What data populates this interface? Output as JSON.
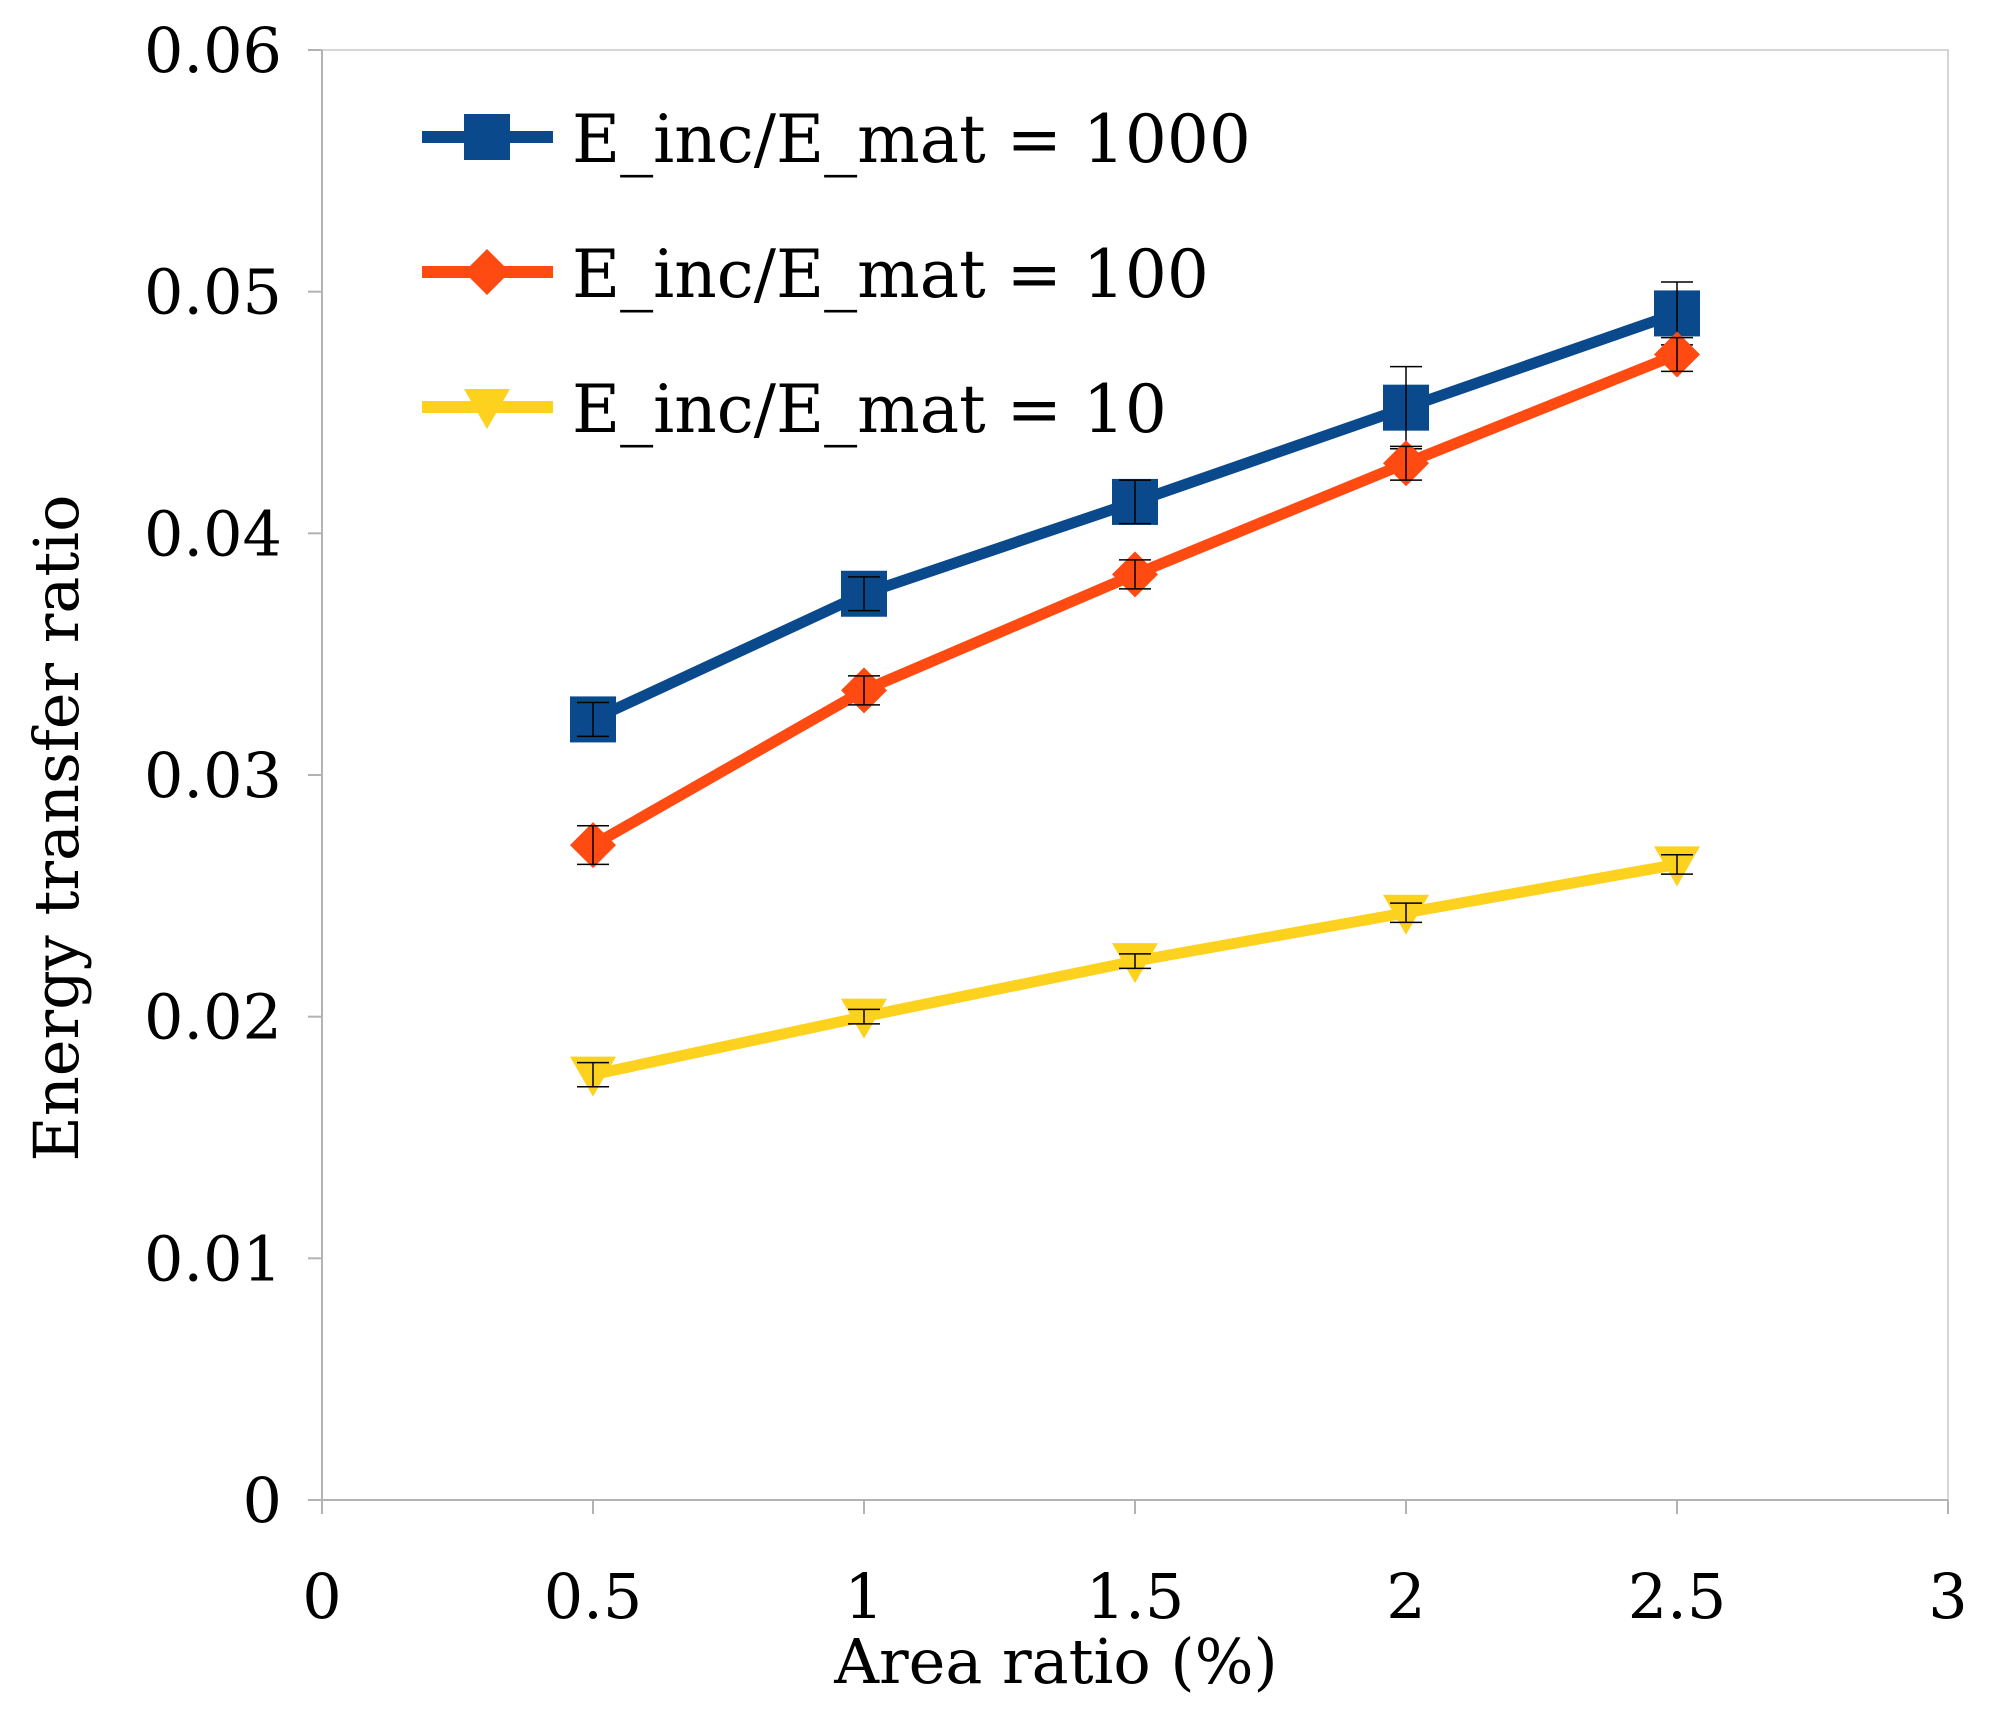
{
  "chart_data": {
    "type": "line",
    "title": "",
    "xlabel": "Area ratio (%)",
    "ylabel": "Energy transfer ratio",
    "xlim": [
      0,
      3
    ],
    "ylim": [
      0,
      0.06
    ],
    "x_ticks": [
      "0",
      "0.5",
      "1",
      "1.5",
      "2",
      "2.5",
      "3"
    ],
    "y_ticks": [
      "0",
      "0.01",
      "0.02",
      "0.03",
      "0.04",
      "0.05",
      "0.06"
    ],
    "grid": false,
    "legend_position": "top-left",
    "x": [
      0.5,
      1,
      1.5,
      2,
      2.5
    ],
    "series": [
      {
        "name": "E_inc/E_mat = 1000",
        "color": "#0a4a8c",
        "marker": "square",
        "values": [
          0.0323,
          0.0375,
          0.0413,
          0.0452,
          0.0491
        ],
        "errors": [
          0.0007,
          0.0007,
          0.0009,
          0.0017,
          0.0013
        ]
      },
      {
        "name": "E_inc/E_mat = 100",
        "color": "#ff4a12",
        "marker": "diamond",
        "values": [
          0.0271,
          0.0335,
          0.0383,
          0.0429,
          0.0474
        ],
        "errors": [
          0.0008,
          0.0006,
          0.0006,
          0.0007,
          0.0007
        ]
      },
      {
        "name": "E_inc/E_mat = 10",
        "color": "#fcd21e",
        "marker": "triangle-down",
        "values": [
          0.0176,
          0.02,
          0.0223,
          0.0243,
          0.0263
        ],
        "errors": [
          0.0005,
          0.0003,
          0.0003,
          0.0004,
          0.0004
        ]
      }
    ]
  }
}
